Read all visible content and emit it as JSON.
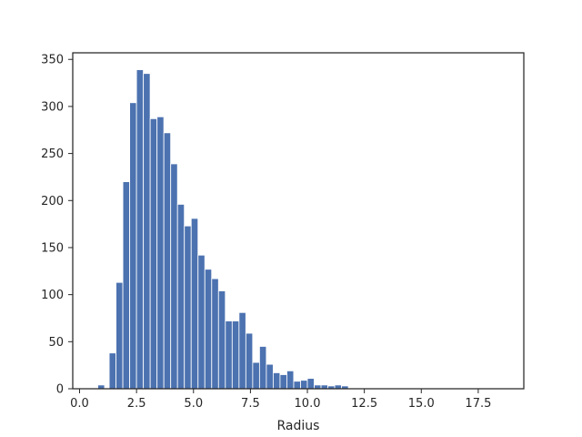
{
  "chart_data": {
    "type": "bar",
    "histogram": true,
    "title": "",
    "xlabel": "Radius",
    "ylabel": "",
    "xlim": [
      -0.3,
      19.5
    ],
    "ylim": [
      0,
      357
    ],
    "grid": false,
    "bar_color": "#4c72b0",
    "axis_color": "#262626",
    "bin_width": 0.5,
    "bins": [
      {
        "x0": 0.8,
        "value": 4
      },
      {
        "x0": 1.3,
        "value": 38
      },
      {
        "x0": 1.6,
        "value": 113
      },
      {
        "x0": 1.9,
        "value": 220
      },
      {
        "x0": 2.2,
        "value": 304
      },
      {
        "x0": 2.5,
        "value": 339
      },
      {
        "x0": 2.8,
        "value": 335
      },
      {
        "x0": 3.1,
        "value": 287
      },
      {
        "x0": 3.4,
        "value": 289
      },
      {
        "x0": 3.7,
        "value": 272
      },
      {
        "x0": 4.0,
        "value": 239
      },
      {
        "x0": 4.3,
        "value": 196
      },
      {
        "x0": 4.6,
        "value": 173
      },
      {
        "x0": 4.9,
        "value": 181
      },
      {
        "x0": 5.2,
        "value": 142
      },
      {
        "x0": 5.5,
        "value": 127
      },
      {
        "x0": 5.8,
        "value": 117
      },
      {
        "x0": 6.1,
        "value": 104
      },
      {
        "x0": 6.4,
        "value": 72
      },
      {
        "x0": 6.7,
        "value": 72
      },
      {
        "x0": 7.0,
        "value": 81
      },
      {
        "x0": 7.3,
        "value": 59
      },
      {
        "x0": 7.6,
        "value": 28
      },
      {
        "x0": 7.9,
        "value": 45
      },
      {
        "x0": 8.2,
        "value": 26
      },
      {
        "x0": 8.5,
        "value": 17
      },
      {
        "x0": 8.8,
        "value": 15
      },
      {
        "x0": 9.1,
        "value": 19
      },
      {
        "x0": 9.4,
        "value": 8
      },
      {
        "x0": 9.7,
        "value": 9
      },
      {
        "x0": 10.0,
        "value": 11
      },
      {
        "x0": 10.3,
        "value": 4
      },
      {
        "x0": 10.6,
        "value": 4
      },
      {
        "x0": 10.9,
        "value": 3
      },
      {
        "x0": 11.2,
        "value": 4
      },
      {
        "x0": 11.5,
        "value": 3
      }
    ],
    "x_ticks": [
      {
        "value": 0.0,
        "label": "0.0"
      },
      {
        "value": 2.5,
        "label": "2.5"
      },
      {
        "value": 5.0,
        "label": "5.0"
      },
      {
        "value": 7.5,
        "label": "7.5"
      },
      {
        "value": 10.0,
        "label": "10.0"
      },
      {
        "value": 12.5,
        "label": "12.5"
      },
      {
        "value": 15.0,
        "label": "15.0"
      },
      {
        "value": 17.5,
        "label": "17.5"
      }
    ],
    "y_ticks": [
      {
        "value": 0,
        "label": "0"
      },
      {
        "value": 50,
        "label": "50"
      },
      {
        "value": 100,
        "label": "100"
      },
      {
        "value": 150,
        "label": "150"
      },
      {
        "value": 200,
        "label": "200"
      },
      {
        "value": 250,
        "label": "250"
      },
      {
        "value": 300,
        "label": "300"
      },
      {
        "value": 350,
        "label": "350"
      }
    ]
  }
}
